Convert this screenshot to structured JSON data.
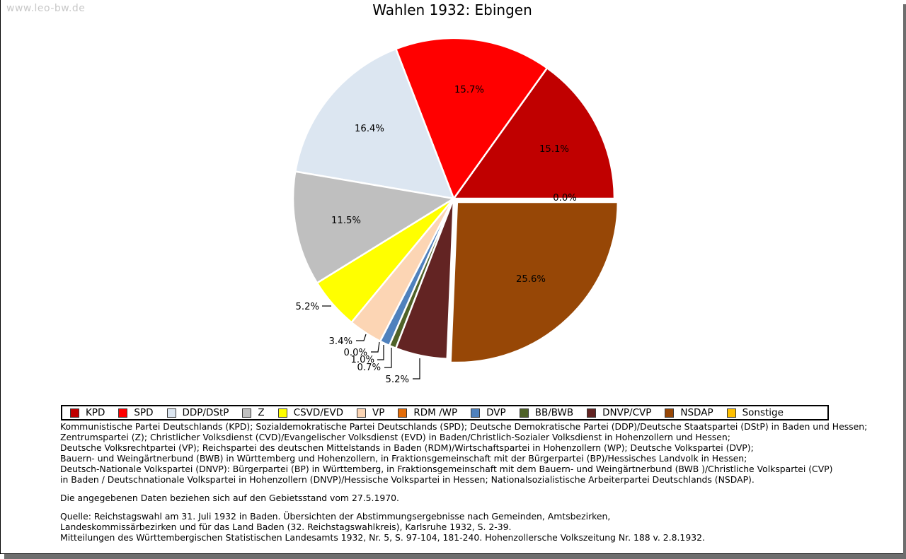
{
  "watermark": "www.leo-bw.de",
  "title": "Wahlen 1932: Ebingen",
  "chart_data": {
    "type": "pie",
    "title": "Wahlen 1932: Ebingen",
    "unit": "%",
    "direction": "counterclockwise",
    "start_angle_deg": 0,
    "exploded_segment": "NSDAP",
    "segments": [
      {
        "label": "KPD",
        "value": 15.1,
        "color": "#c00000"
      },
      {
        "label": "SPD",
        "value": 15.7,
        "color": "#ff0000"
      },
      {
        "label": "DDP/DStP",
        "value": 16.4,
        "color": "#dce6f1"
      },
      {
        "label": "Z",
        "value": 11.5,
        "color": "#bfbfbf"
      },
      {
        "label": "CSVD/EVD",
        "value": 5.2,
        "color": "#ffff00"
      },
      {
        "label": "VP",
        "value": 3.4,
        "color": "#fcd5b4"
      },
      {
        "label": "RDM /WP",
        "value": 0.0,
        "color": "#e36c09"
      },
      {
        "label": "DVP",
        "value": 1.0,
        "color": "#4f81bd"
      },
      {
        "label": "BB/BWB",
        "value": 0.7,
        "color": "#4f6228"
      },
      {
        "label": "DNVP/CVP",
        "value": 5.2,
        "color": "#632423"
      },
      {
        "label": "NSDAP",
        "value": 25.6,
        "color": "#974706"
      },
      {
        "label": "Sonstige",
        "value": 0.0,
        "color": "#ffc000"
      }
    ]
  },
  "notes": {
    "party_lines": [
      "Kommunistische Partei Deutschlands (KPD); Sozialdemokratische Partei Deutschlands (SPD); Deutsche Demokratische Partei (DDP)/Deutsche Staatspartei (DStP) in Baden und Hessen;",
      "Zentrumspartei (Z); Christlicher Volksdienst (CVD)/Evangelischer Volksdienst (EVD) in Baden/Christlich-Sozialer Volksdienst in Hohenzollern und Hessen;",
      "Deutsche Volksrechtpartei (VP); Reichspartei des deutschen Mittelstands in Baden (RDM)/Wirtschaftspartei in Hohenzollern (WP); Deutsche Volkspartei (DVP);",
      "Bauern- und Weingärtnerbund (BWB) in Württemberg und Hohenzollern, in Fraktionsgemeinschaft mit der Bürgerpartei (BP)/Hessisches Landvolk in Hessen;",
      "Deutsch-Nationale Volkspartei (DNVP): Bürgerpartei (BP) in Württemberg, in Fraktionsgemeinschaft mit dem Bauern- und Weingärtnerbund (BWB )/Christliche Volkspartei (CVP)",
      "in Baden / Deutschnationale Volkspartei in Hohenzollern (DNVP)/Hessische Volkspartei in Hessen; Nationalsozialistische Arbeiterpartei Deutschlands (NSDAP)."
    ],
    "gebietsstand": "Die angegebenen Daten beziehen sich auf den Gebietsstand vom 27.5.1970.",
    "quelle_lines": [
      "Quelle: Reichstagswahl am 31. Juli 1932 in Baden. Übersichten der Abstimmungsergebnisse nach Gemeinden, Amtsbezirken,",
      "Landeskommissärbezirken und für das Land Baden (32. Reichstagswahlkreis), Karlsruhe 1932, S. 2-39.",
      "Mitteilungen des Württembergischen Statistischen Landesamts 1932, Nr. 5, S. 97-104, 181-240. Hohenzollersche Volkszeitung Nr. 188 v. 2.8.1932."
    ]
  }
}
